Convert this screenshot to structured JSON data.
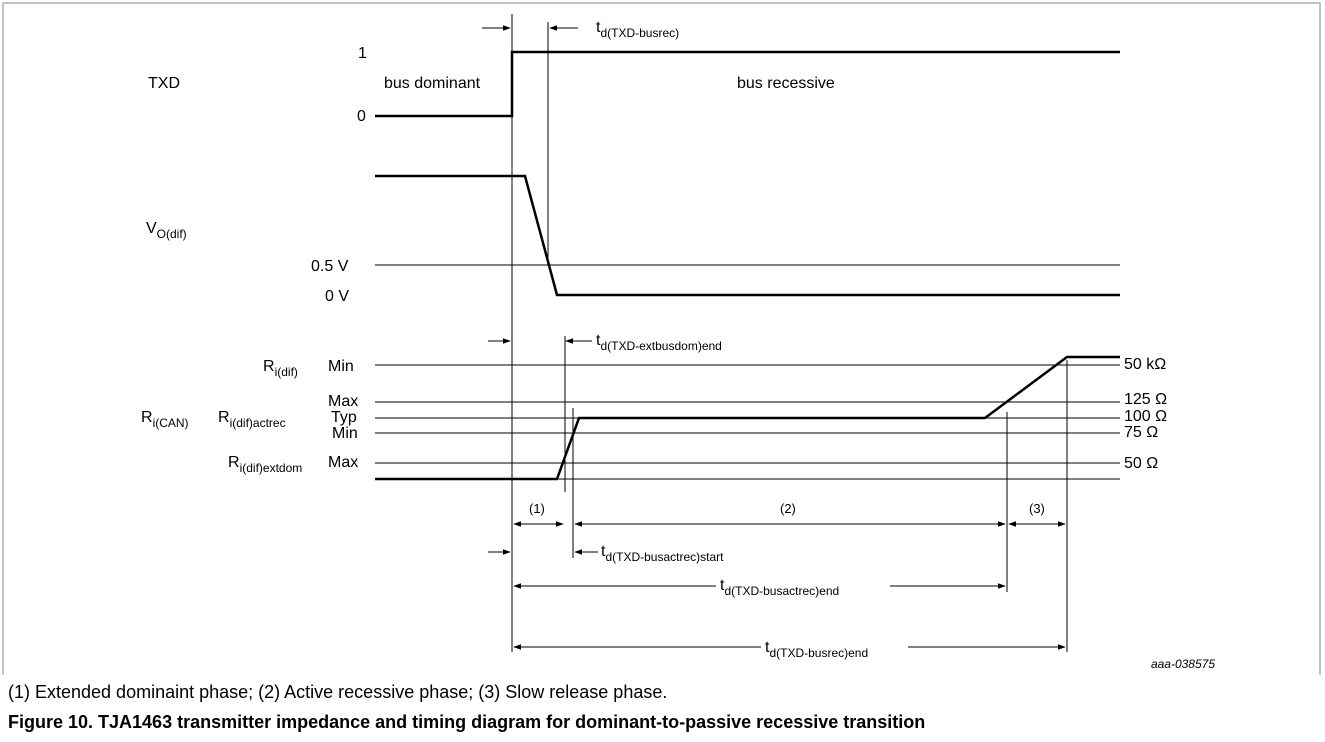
{
  "figure": {
    "code": "aaa-038575",
    "note": "(1) Extended dominaint phase; (2) Active recessive phase; (3) Slow release phase.",
    "caption": "Figure 10.  TJA1463 transmitter impedance and timing diagram for dominant-to-passive recessive transition"
  },
  "txd": {
    "label": "TXD",
    "level_high": "1",
    "level_low": "0",
    "state_dominant": "bus dominant",
    "state_recessive": "bus recessive",
    "delay": {
      "t": "t",
      "sub": "d(TXD-busrec)"
    }
  },
  "vodif": {
    "label": {
      "main": "V",
      "sub": "O(dif)"
    },
    "level_05": "0.5 V",
    "level_0": "0 V"
  },
  "ri": {
    "rdif": {
      "main": "R",
      "sub": "i(dif)"
    },
    "rcan": {
      "main": "R",
      "sub": "i(CAN)"
    },
    "ractrec": {
      "main": "R",
      "sub": "i(dif)actrec"
    },
    "rextdom": {
      "main": "R",
      "sub": "i(dif)extdom"
    },
    "level_min_top": "Min",
    "level_max": "Max",
    "level_typ": "Typ",
    "level_min": "Min",
    "level_max_bottom": "Max",
    "value_50k": "50 kΩ",
    "value_125": "125 Ω",
    "value_100": "100 Ω",
    "value_75": "75 Ω",
    "value_50": "50 Ω",
    "delay_extbusdom": {
      "t": "t",
      "sub": "d(TXD-extbusdom)end"
    }
  },
  "phases": {
    "p1": "(1)",
    "p2": "(2)",
    "p3": "(3)"
  },
  "timings": {
    "actrec_start": {
      "t": "t",
      "sub": "d(TXD-busactrec)start"
    },
    "actrec_end": {
      "t": "t",
      "sub": "d(TXD-busactrec)end"
    },
    "busrec_end": {
      "t": "t",
      "sub": "d(TXD-busrec)end"
    }
  },
  "colors": {
    "line": "#000000",
    "frame": "#9b9b9b"
  }
}
